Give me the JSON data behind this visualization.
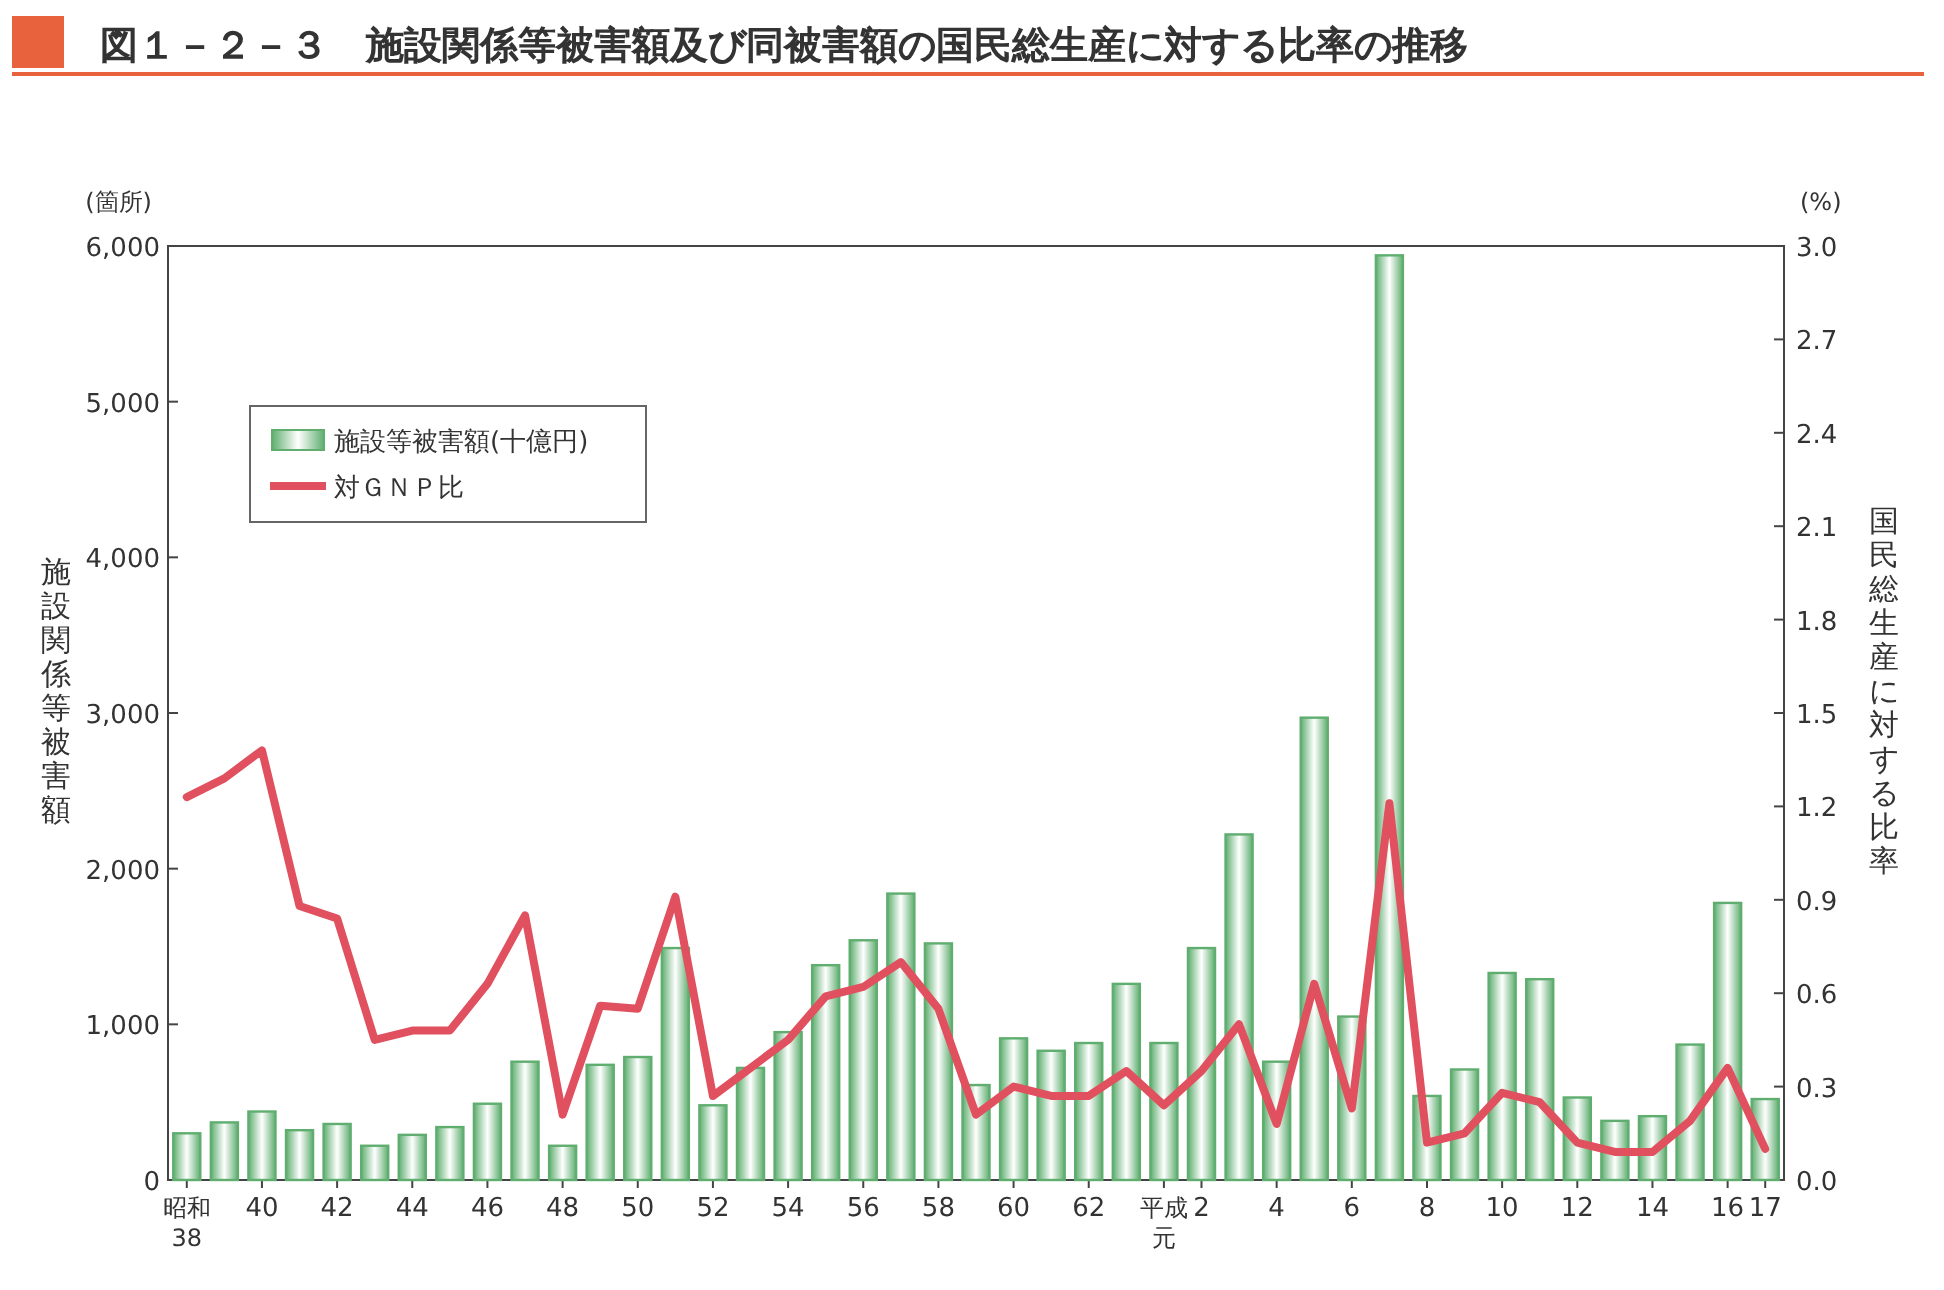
{
  "chart_data": {
    "type": "bar",
    "title": "図１－２－３　施設関係等被害額及び同被害額の国民総生産に対する比率の推移",
    "ylabel": "施設関係等被害額",
    "y2label": "国民総生産に対する比率",
    "annotations": [
      "(箇所)",
      "(%)"
    ],
    "categories": [
      "昭和38",
      null,
      "40",
      null,
      "42",
      null,
      "44",
      null,
      "46",
      null,
      "48",
      null,
      "50",
      null,
      "52",
      null,
      "54",
      null,
      "56",
      null,
      "58",
      null,
      "60",
      null,
      "62",
      null,
      "平成元",
      "2",
      null,
      "4",
      null,
      "6",
      null,
      "8",
      null,
      "10",
      null,
      "12",
      null,
      "14",
      null,
      "16",
      "17"
    ],
    "series": [
      {
        "name": "施設等被害額(十億円)",
        "color": "#5fae70",
        "values": [
          300,
          370,
          440,
          320,
          360,
          220,
          290,
          340,
          490,
          760,
          220,
          740,
          790,
          1490,
          480,
          720,
          950,
          1380,
          1540,
          1840,
          1520,
          610,
          910,
          830,
          880,
          1260,
          880,
          1490,
          2220,
          760,
          2970,
          1050,
          5940,
          540,
          710,
          1330,
          1290,
          530,
          380,
          410,
          870,
          1780,
          520
        ]
      },
      {
        "name": "対ＧＮＰ比",
        "type": "line",
        "axis": "y2",
        "color": "#e0505e",
        "values": [
          1.23,
          1.29,
          1.38,
          0.88,
          0.84,
          0.45,
          0.48,
          0.48,
          0.63,
          0.85,
          0.21,
          0.56,
          0.55,
          0.91,
          0.27,
          0.36,
          0.45,
          0.59,
          0.62,
          0.7,
          0.55,
          0.21,
          0.3,
          0.27,
          0.27,
          0.35,
          0.24,
          0.35,
          0.5,
          0.18,
          0.63,
          0.23,
          1.21,
          0.12,
          0.15,
          0.28,
          0.25,
          0.12,
          0.09,
          0.09,
          0.19,
          0.36,
          0.1
        ]
      }
    ],
    "ylim": [
      0,
      6000
    ],
    "yticks": [
      0,
      {
        "value": 1000,
        "label": "1,000"
      },
      {
        "value": 2000,
        "label": "2,000"
      },
      {
        "value": 3000,
        "label": "3,000"
      },
      {
        "value": 4000,
        "label": "4,000"
      },
      {
        "value": 5000,
        "label": "5,000"
      },
      {
        "value": 6000,
        "label": "6,000"
      }
    ],
    "y2lim": [
      0,
      3
    ],
    "y2ticks": [
      {
        "value": 0,
        "label": "0.0"
      },
      0.3,
      0.6,
      0.9,
      1.2,
      1.5,
      1.8,
      2.1,
      2.4,
      2.7,
      {
        "value": 3,
        "label": "3.0"
      }
    ],
    "legend": "top left",
    "grid": false
  }
}
